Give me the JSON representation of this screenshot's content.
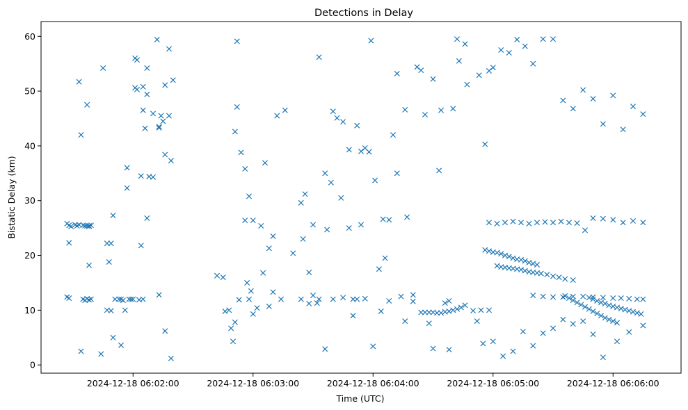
{
  "chart_data": {
    "type": "scatter",
    "title": "Detections in Delay",
    "xlabel": "Time (UTC)",
    "ylabel": "Bistatic Delay (km)",
    "marker": "x",
    "color": "#1f77b4",
    "grid": false,
    "legend": "none",
    "xlim": [
      "2024-12-18 06:01:14",
      "2024-12-18 06:06:34"
    ],
    "ylim": [
      -1.5,
      62.7
    ],
    "x_ticks": [
      "2024-12-18 06:02:00",
      "2024-12-18 06:03:00",
      "2024-12-18 06:04:00",
      "2024-12-18 06:05:00",
      "2024-12-18 06:06:00"
    ],
    "y_ticks": [
      0,
      10,
      20,
      30,
      40,
      50,
      60
    ],
    "series": [
      {
        "x": [
          "2024-12-18 06:01:27",
          "2024-12-18 06:01:28",
          "2024-12-18 06:01:29",
          "2024-12-18 06:01:31",
          "2024-12-18 06:01:32",
          "2024-12-18 06:01:33",
          "2024-12-18 06:01:35",
          "2024-12-18 06:01:36",
          "2024-12-18 06:01:37",
          "2024-12-18 06:01:38",
          "2024-12-18 06:01:38",
          "2024-12-18 06:01:39",
          "2024-12-18 06:01:27",
          "2024-12-18 06:01:28",
          "2024-12-18 06:01:35",
          "2024-12-18 06:01:36",
          "2024-12-18 06:01:37",
          "2024-12-18 06:01:38",
          "2024-12-18 06:01:39",
          "2024-12-18 06:01:28",
          "2024-12-18 06:01:33",
          "2024-12-18 06:01:34",
          "2024-12-18 06:01:37",
          "2024-12-18 06:01:38",
          "2024-12-18 06:01:45",
          "2024-12-18 06:01:47",
          "2024-12-18 06:01:48",
          "2024-12-18 06:01:49",
          "2024-12-18 06:01:49",
          "2024-12-18 06:01:50",
          "2024-12-18 06:01:51",
          "2024-12-18 06:01:53",
          "2024-12-18 06:01:54",
          "2024-12-18 06:01:54",
          "2024-12-18 06:01:55",
          "2024-12-18 06:01:58",
          "2024-12-18 06:01:59",
          "2024-12-18 06:01:34",
          "2024-12-18 06:01:47",
          "2024-12-18 06:02:01",
          "2024-12-18 06:02:02",
          "2024-12-18 06:02:04",
          "2024-12-18 06:02:05",
          "2024-12-18 06:02:07",
          "2024-12-18 06:02:10",
          "2024-12-18 06:02:13",
          "2024-12-18 06:02:16",
          "2024-12-18 06:02:19",
          "2024-12-18 06:02:05",
          "2024-12-18 06:02:07",
          "2024-12-18 06:02:12",
          "2024-12-18 06:02:14",
          "2024-12-18 06:02:16",
          "2024-12-18 06:02:18",
          "2024-12-18 06:02:20",
          "2024-12-18 06:02:00",
          "2024-12-18 06:02:03",
          "2024-12-18 06:02:05",
          "2024-12-18 06:02:07",
          "2024-12-18 06:02:13",
          "2024-12-18 06:02:16",
          "2024-12-18 06:02:19",
          "2024-12-18 06:01:44",
          "2024-12-18 06:01:50",
          "2024-12-18 06:01:56",
          "2024-12-18 06:01:57",
          "2024-12-18 06:01:57",
          "2024-12-18 06:02:01",
          "2024-12-18 06:02:02",
          "2024-12-18 06:02:04",
          "2024-12-18 06:02:06",
          "2024-12-18 06:02:08",
          "2024-12-18 06:02:10",
          "2024-12-18 06:02:13",
          "2024-12-18 06:02:15",
          "2024-12-18 06:02:18",
          "2024-12-18 06:02:42",
          "2024-12-18 06:02:45",
          "2024-12-18 06:02:46",
          "2024-12-18 06:02:48",
          "2024-12-18 06:02:50",
          "2024-12-18 06:02:52",
          "2024-12-18 06:02:54",
          "2024-12-18 06:02:56",
          "2024-12-18 06:02:58",
          "2024-12-18 06:03:00",
          "2024-12-18 06:03:04",
          "2024-12-18 06:03:08",
          "2024-12-18 06:03:10",
          "2024-12-18 06:03:14",
          "2024-12-18 06:02:51",
          "2024-12-18 06:02:52",
          "2024-12-18 06:02:56",
          "2024-12-18 06:02:58",
          "2024-12-18 06:03:00",
          "2024-12-18 06:03:05",
          "2024-12-18 06:03:08",
          "2024-12-18 06:03:10",
          "2024-12-18 06:02:49",
          "2024-12-18 06:02:51",
          "2024-12-18 06:02:53",
          "2024-12-18 06:02:57",
          "2024-12-18 06:02:59",
          "2024-12-18 06:03:02",
          "2024-12-18 06:03:06",
          "2024-12-18 06:03:12",
          "2024-12-18 06:03:16",
          "2024-12-18 06:03:20",
          "2024-12-18 06:03:24",
          "2024-12-18 06:03:28",
          "2024-12-18 06:03:24",
          "2024-12-18 06:03:26",
          "2024-12-18 06:03:28",
          "2024-12-18 06:03:30",
          "2024-12-18 06:03:33",
          "2024-12-18 06:03:36",
          "2024-12-18 06:03:39",
          "2024-12-18 06:03:42",
          "2024-12-18 06:03:45",
          "2024-12-18 06:03:48",
          "2024-12-18 06:03:50",
          "2024-12-18 06:03:52",
          "2024-12-18 06:03:54",
          "2024-12-18 06:03:56",
          "2024-12-18 06:03:30",
          "2024-12-18 06:03:33",
          "2024-12-18 06:03:36",
          "2024-12-18 06:03:40",
          "2024-12-18 06:03:44",
          "2024-12-18 06:03:48",
          "2024-12-18 06:03:52",
          "2024-12-18 06:03:56",
          "2024-12-18 06:03:59",
          "2024-12-18 06:04:03",
          "2024-12-18 06:04:06",
          "2024-12-18 06:04:10",
          "2024-12-18 06:04:14",
          "2024-12-18 06:04:17",
          "2024-12-18 06:04:20",
          "2024-12-18 06:03:25",
          "2024-12-18 06:03:32",
          "2024-12-18 06:03:37",
          "2024-12-18 06:03:40",
          "2024-12-18 06:03:45",
          "2024-12-18 06:03:50",
          "2024-12-18 06:03:54",
          "2024-12-18 06:03:58",
          "2024-12-18 06:04:01",
          "2024-12-18 06:04:05",
          "2024-12-18 06:04:08",
          "2024-12-18 06:04:12",
          "2024-12-18 06:04:16",
          "2024-12-18 06:04:20",
          "2024-12-18 06:04:24",
          "2024-12-18 06:04:28",
          "2024-12-18 06:04:00",
          "2024-12-18 06:04:04",
          "2024-12-18 06:04:08",
          "2024-12-18 06:04:12",
          "2024-12-18 06:04:16",
          "2024-12-18 06:04:22",
          "2024-12-18 06:04:26",
          "2024-12-18 06:04:30",
          "2024-12-18 06:04:34",
          "2024-12-18 06:04:38",
          "2024-12-18 06:04:42",
          "2024-12-18 06:04:47",
          "2024-12-18 06:04:52",
          "2024-12-18 06:04:56",
          "2024-12-18 06:04:24",
          "2024-12-18 06:04:26",
          "2024-12-18 06:04:28",
          "2024-12-18 06:04:30",
          "2024-12-18 06:04:32",
          "2024-12-18 06:04:34",
          "2024-12-18 06:04:36",
          "2024-12-18 06:04:38",
          "2024-12-18 06:04:40",
          "2024-12-18 06:04:42",
          "2024-12-18 06:04:44",
          "2024-12-18 06:04:46",
          "2024-12-18 06:04:30",
          "2024-12-18 06:04:33",
          "2024-12-18 06:04:36",
          "2024-12-18 06:04:38",
          "2024-12-18 06:04:40",
          "2024-12-18 06:04:43",
          "2024-12-18 06:04:46",
          "2024-12-18 06:04:50",
          "2024-12-18 06:04:54",
          "2024-12-18 06:04:58",
          "2024-12-18 06:04:56",
          "2024-12-18 06:04:58",
          "2024-12-18 06:05:00",
          "2024-12-18 06:05:02",
          "2024-12-18 06:05:04",
          "2024-12-18 06:05:06",
          "2024-12-18 06:05:08",
          "2024-12-18 06:05:10",
          "2024-12-18 06:05:12",
          "2024-12-18 06:05:14",
          "2024-12-18 06:05:16",
          "2024-12-18 06:05:18",
          "2024-12-18 06:05:20",
          "2024-12-18 06:05:22",
          "2024-12-18 06:05:02",
          "2024-12-18 06:05:04",
          "2024-12-18 06:05:06",
          "2024-12-18 06:05:08",
          "2024-12-18 06:05:10",
          "2024-12-18 06:05:12",
          "2024-12-18 06:05:14",
          "2024-12-18 06:05:16",
          "2024-12-18 06:05:18",
          "2024-12-18 06:05:20",
          "2024-12-18 06:05:22",
          "2024-12-18 06:05:24",
          "2024-12-18 06:05:27",
          "2024-12-18 06:05:30",
          "2024-12-18 06:05:33",
          "2024-12-18 06:05:36",
          "2024-12-18 06:05:40",
          "2024-12-18 06:05:20",
          "2024-12-18 06:05:25",
          "2024-12-18 06:05:30",
          "2024-12-18 06:05:35",
          "2024-12-18 06:05:40",
          "2024-12-18 06:05:45",
          "2024-12-18 06:05:50",
          "2024-12-18 06:05:55",
          "2024-12-18 06:06:00",
          "2024-12-18 06:06:04",
          "2024-12-18 06:06:08",
          "2024-12-18 06:06:12",
          "2024-12-18 06:06:15",
          "2024-12-18 06:05:48",
          "2024-12-18 06:05:50",
          "2024-12-18 06:05:52",
          "2024-12-18 06:05:54",
          "2024-12-18 06:05:56",
          "2024-12-18 06:05:58",
          "2024-12-18 06:06:00",
          "2024-12-18 06:06:02",
          "2024-12-18 06:06:04",
          "2024-12-18 06:06:06",
          "2024-12-18 06:06:08",
          "2024-12-18 06:06:10",
          "2024-12-18 06:06:12",
          "2024-12-18 06:06:14",
          "2024-12-18 06:05:36",
          "2024-12-18 06:05:38",
          "2024-12-18 06:05:40",
          "2024-12-18 06:05:42",
          "2024-12-18 06:05:44",
          "2024-12-18 06:05:46",
          "2024-12-18 06:05:48",
          "2024-12-18 06:05:50",
          "2024-12-18 06:05:52",
          "2024-12-18 06:05:54",
          "2024-12-18 06:05:56",
          "2024-12-18 06:05:58",
          "2024-12-18 06:06:00",
          "2024-12-18 06:06:02",
          "2024-12-18 06:04:53",
          "2024-12-18 06:04:58",
          "2024-12-18 06:05:00",
          "2024-12-18 06:05:04",
          "2024-12-18 06:05:08",
          "2024-12-18 06:05:12",
          "2024-12-18 06:05:16",
          "2024-12-18 06:05:20",
          "2024-12-18 06:05:25",
          "2024-12-18 06:05:30",
          "2024-12-18 06:05:35",
          "2024-12-18 06:05:40",
          "2024-12-18 06:05:45",
          "2024-12-18 06:05:50",
          "2024-12-18 06:05:55",
          "2024-12-18 06:06:00",
          "2024-12-18 06:06:05",
          "2024-12-18 06:06:10",
          "2024-12-18 06:06:15",
          "2024-12-18 06:04:55",
          "2024-12-18 06:05:00",
          "2024-12-18 06:05:05",
          "2024-12-18 06:05:10",
          "2024-12-18 06:05:15",
          "2024-12-18 06:05:20",
          "2024-12-18 06:05:25",
          "2024-12-18 06:05:30",
          "2024-12-18 06:05:35",
          "2024-12-18 06:05:40",
          "2024-12-18 06:05:45",
          "2024-12-18 06:05:50",
          "2024-12-18 06:05:55",
          "2024-12-18 06:06:02",
          "2024-12-18 06:06:08",
          "2024-12-18 06:06:15",
          "2024-12-18 06:04:58",
          "2024-12-18 06:05:02",
          "2024-12-18 06:05:06",
          "2024-12-18 06:05:10",
          "2024-12-18 06:05:14",
          "2024-12-18 06:05:18",
          "2024-12-18 06:05:22",
          "2024-12-18 06:05:26",
          "2024-12-18 06:05:30",
          "2024-12-18 06:05:34",
          "2024-12-18 06:05:38",
          "2024-12-18 06:05:42",
          "2024-12-18 06:05:46",
          "2024-12-18 06:05:50",
          "2024-12-18 06:05:55",
          "2024-12-18 06:06:00",
          "2024-12-18 06:06:05",
          "2024-12-18 06:06:10",
          "2024-12-18 06:06:15"
        ],
        "y": [
          25.8,
          25.5,
          25.3,
          25.6,
          25.4,
          25.6,
          25.5,
          25.4,
          25.4,
          25.4,
          25.3,
          25.5,
          12.4,
          12.2,
          12.0,
          11.8,
          12.1,
          11.9,
          12.0,
          22.3,
          51.7,
          42.0,
          47.5,
          18.2,
          54.2,
          22.2,
          18.8,
          22.2,
          9.9,
          5.0,
          12.0,
          12.0,
          3.6,
          12.0,
          11.8,
          12.0,
          12.0,
          2.5,
          10.0,
          56.0,
          55.7,
          21.8,
          50.8,
          54.2,
          34.3,
          43.3,
          38.4,
          37.3,
          46.5,
          49.4,
          59.4,
          45.5,
          51.1,
          57.7,
          52.0,
          12.0,
          11.9,
          12.0,
          26.8,
          12.8,
          6.2,
          1.2,
          2.0,
          27.3,
          10.0,
          36.0,
          32.3,
          50.6,
          50.3,
          34.5,
          43.2,
          34.4,
          45.9,
          43.5,
          44.5,
          45.5,
          16.3,
          16.0,
          9.8,
          10.0,
          4.3,
          47.1,
          38.8,
          26.4,
          30.8,
          26.4,
          25.4,
          21.3,
          23.5,
          12.0,
          42.6,
          59.1,
          35.8,
          12.0,
          9.3,
          16.8,
          10.7,
          13.3,
          6.7,
          7.8,
          11.9,
          15.0,
          13.5,
          10.4,
          36.9,
          45.5,
          46.5,
          20.4,
          12.0,
          11.2,
          29.6,
          31.2,
          16.9,
          12.7,
          12.0,
          2.9,
          33.3,
          45.1,
          44.4,
          39.3,
          12.0,
          12.0,
          25.6,
          12.1,
          25.6,
          56.2,
          35.0,
          46.3,
          30.5,
          25.0,
          43.7,
          39.6,
          59.2,
          17.5,
          19.5,
          42.0,
          12.5,
          27.0,
          12.8,
          23.0,
          11.3,
          24.7,
          12.0,
          12.3,
          9.0,
          39.0,
          38.9,
          33.7,
          26.6,
          26.5,
          35.0,
          46.6,
          11.6,
          53.8,
          7.6,
          3.4,
          9.8,
          11.7,
          53.2,
          8.0,
          54.4,
          45.7,
          52.2,
          46.5,
          11.7,
          59.5,
          51.2,
          8.0,
          40.3,
          9.6,
          9.6,
          9.6,
          9.6,
          9.5,
          9.5,
          9.7,
          9.8,
          10.0,
          10.2,
          10.5,
          10.9,
          3.0,
          35.5,
          11.3,
          2.8,
          46.8,
          55.5,
          58.6,
          9.9,
          10.0,
          10.0,
          21.0,
          20.8,
          20.6,
          20.5,
          20.3,
          20.0,
          19.8,
          19.5,
          19.3,
          19.2,
          19.0,
          18.7,
          18.5,
          18.3,
          18.1,
          17.9,
          17.8,
          17.7,
          17.6,
          17.5,
          17.4,
          17.2,
          17.0,
          16.9,
          16.8,
          16.7,
          16.5,
          16.2,
          16.0,
          15.7,
          15.5,
          12.7,
          12.5,
          12.4,
          12.4,
          12.5,
          12.5,
          12.4,
          12.3,
          12.2,
          12.2,
          12.1,
          12.0,
          12.0,
          12.3,
          12.0,
          11.7,
          11.4,
          11.2,
          10.9,
          10.7,
          10.5,
          10.3,
          10.1,
          9.9,
          9.7,
          9.5,
          9.3,
          12.6,
          12.2,
          11.8,
          11.4,
          11.0,
          10.6,
          10.2,
          9.8,
          9.4,
          9.0,
          8.6,
          8.3,
          8.0,
          7.7,
          52.9,
          53.7,
          54.3,
          57.5,
          57.0,
          59.4,
          58.2,
          55.0,
          59.5,
          59.5,
          48.3,
          46.8,
          50.2,
          48.6,
          44.0,
          49.2,
          43.0,
          47.2,
          45.8,
          3.9,
          4.3,
          1.6,
          2.5,
          6.1,
          3.5,
          5.8,
          6.7,
          8.3,
          7.5,
          8.0,
          5.6,
          1.4,
          4.3,
          6.0,
          7.2,
          26.0,
          25.8,
          26.0,
          26.2,
          26.0,
          25.8,
          26.0,
          26.1,
          26.0,
          26.2,
          26.0,
          25.9,
          24.6,
          26.8,
          26.7,
          26.5,
          26.0,
          26.3,
          26.0
        ]
      }
    ]
  }
}
